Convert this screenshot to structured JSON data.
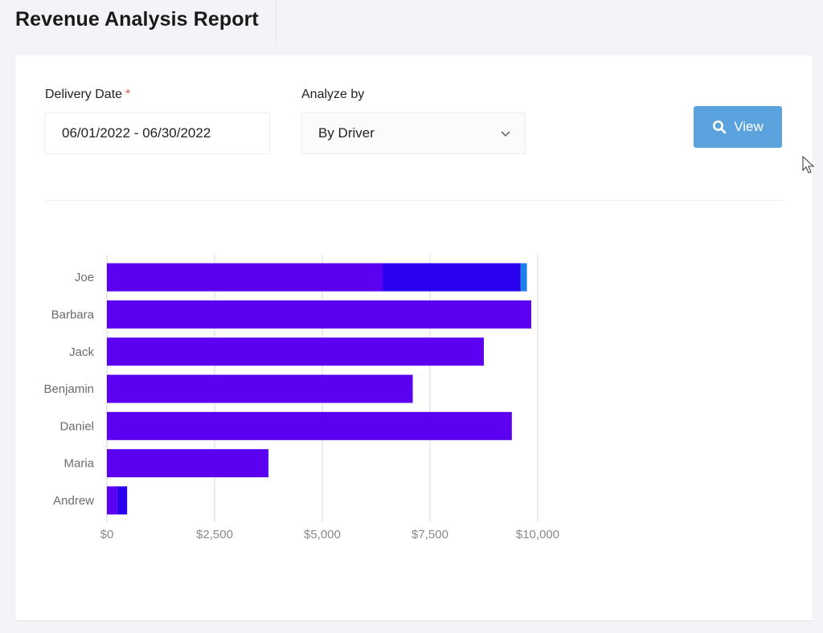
{
  "page": {
    "title": "Revenue Analysis Report"
  },
  "filters": {
    "delivery_date_label": "Delivery Date",
    "required_marker": "*",
    "delivery_date_value": "06/01/2022 - 06/30/2022",
    "analyze_by_label": "Analyze by",
    "analyze_by_value": "By Driver",
    "view_button_label": "View"
  },
  "colors": {
    "series_1": "#5b00f0",
    "series_2": "#2b00ef",
    "series_3": "#1e7fe6",
    "grid": "#d9d9d9",
    "tick_text": "#8a8a8a",
    "category_text": "#6b6b6b"
  },
  "chart_data": {
    "type": "bar",
    "orientation": "horizontal",
    "stacked": true,
    "categories": [
      "Joe",
      "Barbara",
      "Jack",
      "Benjamin",
      "Daniel",
      "Maria",
      "Andrew"
    ],
    "series": [
      {
        "values": [
          6400,
          9850,
          8750,
          7100,
          9400,
          3750,
          240
        ]
      },
      {
        "values": [
          3200,
          0,
          0,
          0,
          0,
          0,
          230
        ]
      },
      {
        "values": [
          150,
          0,
          0,
          0,
          0,
          0,
          0
        ]
      }
    ],
    "xlim": [
      0,
      10000
    ],
    "xticks": [
      0,
      2500,
      5000,
      7500,
      10000
    ],
    "xtick_labels": [
      "$0",
      "$2,500",
      "$5,000",
      "$7,500",
      "$10,000"
    ],
    "grid": true,
    "legend": "none",
    "title": "",
    "xlabel": "",
    "ylabel": ""
  }
}
